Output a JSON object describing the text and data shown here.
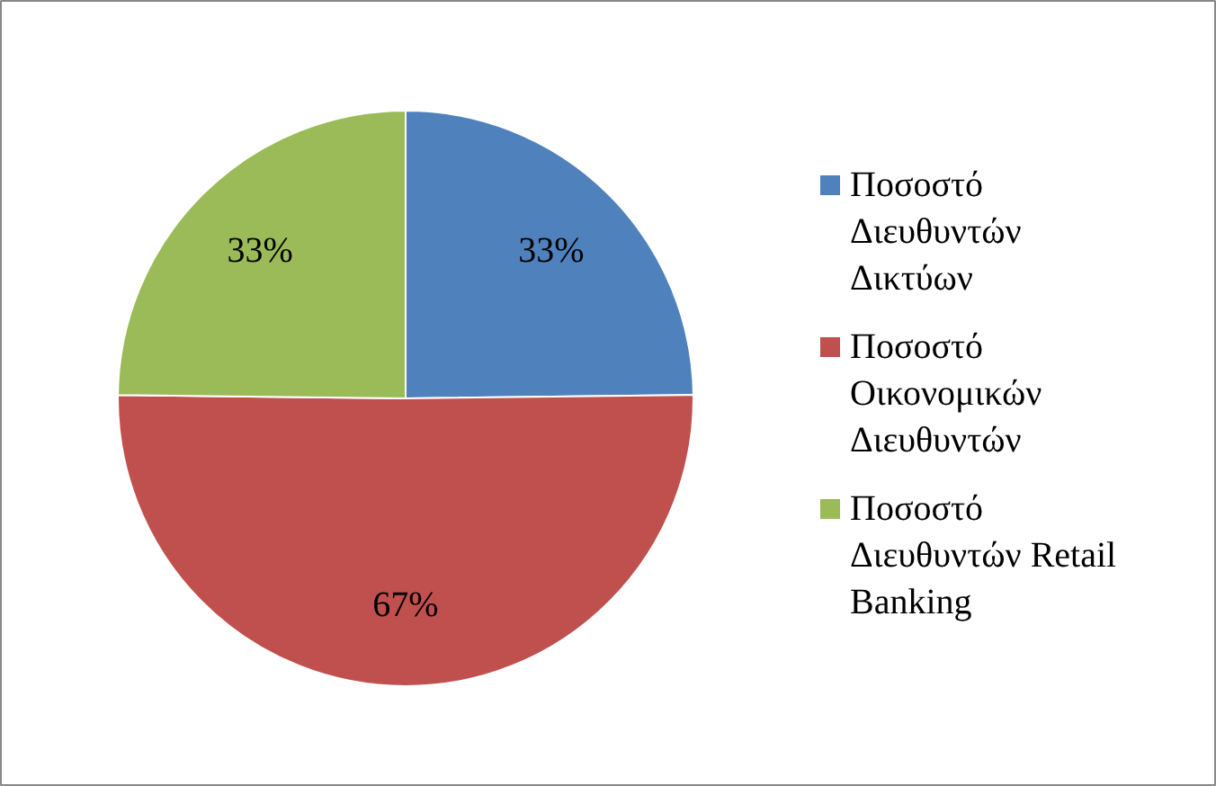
{
  "chart_data": {
    "type": "pie",
    "categories": [
      "Ποσοστό Διευθυντών Δικτύων",
      "Ποσοστό Οικονομικών Διευθυντών",
      "Ποσοστό Διευθυντών Retail Banking"
    ],
    "values": [
      33,
      67,
      33
    ],
    "colors": [
      "#4f81bd",
      "#c0504d",
      "#9bbb59"
    ],
    "value_labels": [
      "33%",
      "67%",
      "33%"
    ],
    "legend": "right"
  }
}
